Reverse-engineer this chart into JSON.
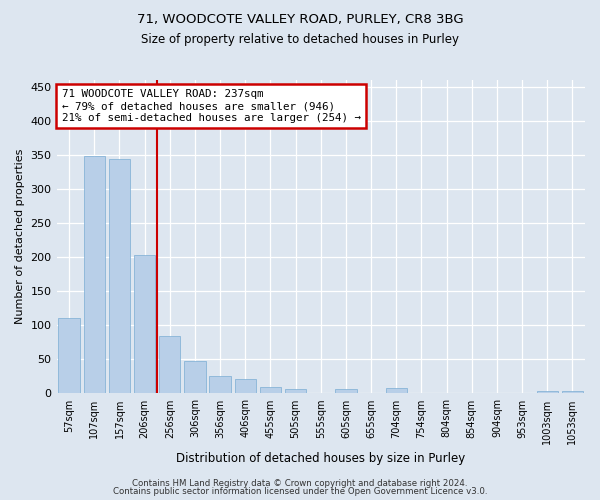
{
  "title1": "71, WOODCOTE VALLEY ROAD, PURLEY, CR8 3BG",
  "title2": "Size of property relative to detached houses in Purley",
  "xlabel": "Distribution of detached houses by size in Purley",
  "ylabel": "Number of detached properties",
  "footer1": "Contains HM Land Registry data © Crown copyright and database right 2024.",
  "footer2": "Contains public sector information licensed under the Open Government Licence v3.0.",
  "annotation_line1": "71 WOODCOTE VALLEY ROAD: 237sqm",
  "annotation_line2": "← 79% of detached houses are smaller (946)",
  "annotation_line3": "21% of semi-detached houses are larger (254) →",
  "bar_categories": [
    "57sqm",
    "107sqm",
    "157sqm",
    "206sqm",
    "256sqm",
    "306sqm",
    "356sqm",
    "406sqm",
    "455sqm",
    "505sqm",
    "555sqm",
    "605sqm",
    "655sqm",
    "704sqm",
    "754sqm",
    "804sqm",
    "854sqm",
    "904sqm",
    "953sqm",
    "1003sqm",
    "1053sqm"
  ],
  "bar_values": [
    110,
    348,
    344,
    203,
    84,
    47,
    25,
    21,
    10,
    7,
    0,
    6,
    0,
    8,
    0,
    0,
    0,
    0,
    0,
    4,
    3
  ],
  "bar_color": "#b8cfe8",
  "bar_edge_color": "#7aadd4",
  "vline_color": "#cc0000",
  "vline_x": 3.5,
  "annotation_box_color": "#cc0000",
  "background_color": "#dde6f0",
  "ylim": [
    0,
    460
  ],
  "yticks": [
    0,
    50,
    100,
    150,
    200,
    250,
    300,
    350,
    400,
    450
  ]
}
